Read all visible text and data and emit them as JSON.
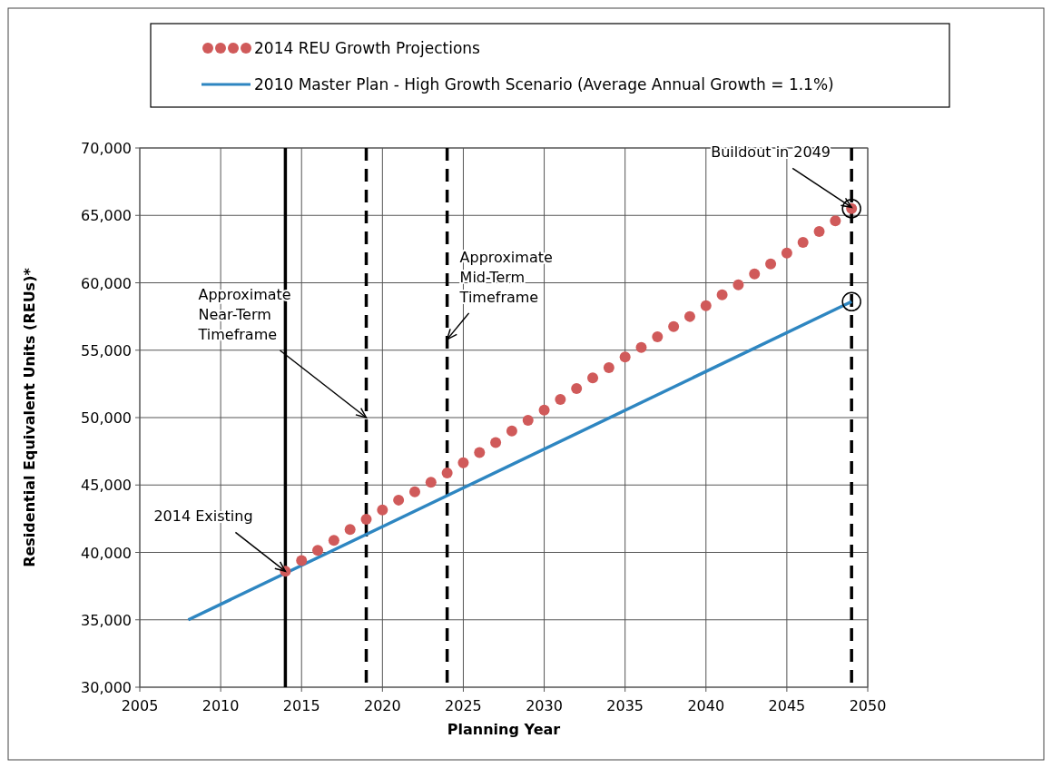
{
  "chart_data": {
    "type": "line",
    "xlabel": "Planning Year",
    "ylabel": "Residential Equivalent Units (REUs)*",
    "xlim": [
      2005,
      2050
    ],
    "xticks": [
      2005,
      2010,
      2015,
      2020,
      2025,
      2030,
      2035,
      2040,
      2045,
      2050
    ],
    "ylim": [
      30000,
      70000
    ],
    "yticks": [
      {
        "value": 30000,
        "label": "30,000"
      },
      {
        "value": 35000,
        "label": "35,000"
      },
      {
        "value": 40000,
        "label": "40,000"
      },
      {
        "value": 45000,
        "label": "45,000"
      },
      {
        "value": 50000,
        "label": "50,000"
      },
      {
        "value": 55000,
        "label": "55,000"
      },
      {
        "value": 60000,
        "label": "60,000"
      },
      {
        "value": 65000,
        "label": "65,000"
      },
      {
        "value": 70000,
        "label": "70,000"
      }
    ],
    "grid": true,
    "legend": "top",
    "series": [
      {
        "name": "2014 REU Growth Projections",
        "type": "scatter",
        "marker": "circle",
        "color": "#d05a5a",
        "x": [
          2014,
          2015,
          2016,
          2017,
          2018,
          2019,
          2020,
          2021,
          2022,
          2023,
          2024,
          2025,
          2026,
          2027,
          2028,
          2029,
          2030,
          2031,
          2032,
          2033,
          2034,
          2035,
          2036,
          2037,
          2038,
          2039,
          2040,
          2041,
          2042,
          2043,
          2044,
          2045,
          2046,
          2047,
          2048,
          2049
        ],
        "values": [
          38600,
          39400,
          40150,
          40900,
          41700,
          42450,
          43150,
          43880,
          44500,
          45200,
          45900,
          46650,
          47400,
          48150,
          49000,
          49800,
          50550,
          51350,
          52150,
          52950,
          53700,
          54500,
          55200,
          56000,
          56750,
          57500,
          58300,
          59100,
          59850,
          60650,
          61400,
          62200,
          63000,
          63800,
          64600,
          65500
        ]
      },
      {
        "name": "2010 Master Plan - High Growth Scenario (Average Annual Growth = 1.1%)",
        "line_style": "solid",
        "color": "#2e86c1",
        "x": [
          2008,
          2049
        ],
        "values": [
          35000,
          58600
        ]
      }
    ],
    "ref_lines": [
      {
        "axis": "x",
        "value": 2014,
        "line_style": "solid",
        "color": "#000000"
      },
      {
        "axis": "x",
        "value": 2019,
        "line_style": "dashed",
        "color": "#000000"
      },
      {
        "axis": "x",
        "value": 2024,
        "line_style": "dashed",
        "color": "#000000"
      },
      {
        "axis": "x",
        "value": 2049,
        "line_style": "dashed",
        "color": "#000000"
      }
    ],
    "annotations": [
      {
        "text": "2014 Existing",
        "x": 2014,
        "y": 38600
      },
      {
        "text": "Approximate\nNear-Term\nTimeframe",
        "x": 2019,
        "y": 50000
      },
      {
        "text": "Approximate\nMid-Term\nTimeframe",
        "x": 2024,
        "y": 55800
      },
      {
        "text": "Buildout in 2049",
        "x": 2049,
        "y": 65600
      }
    ]
  }
}
